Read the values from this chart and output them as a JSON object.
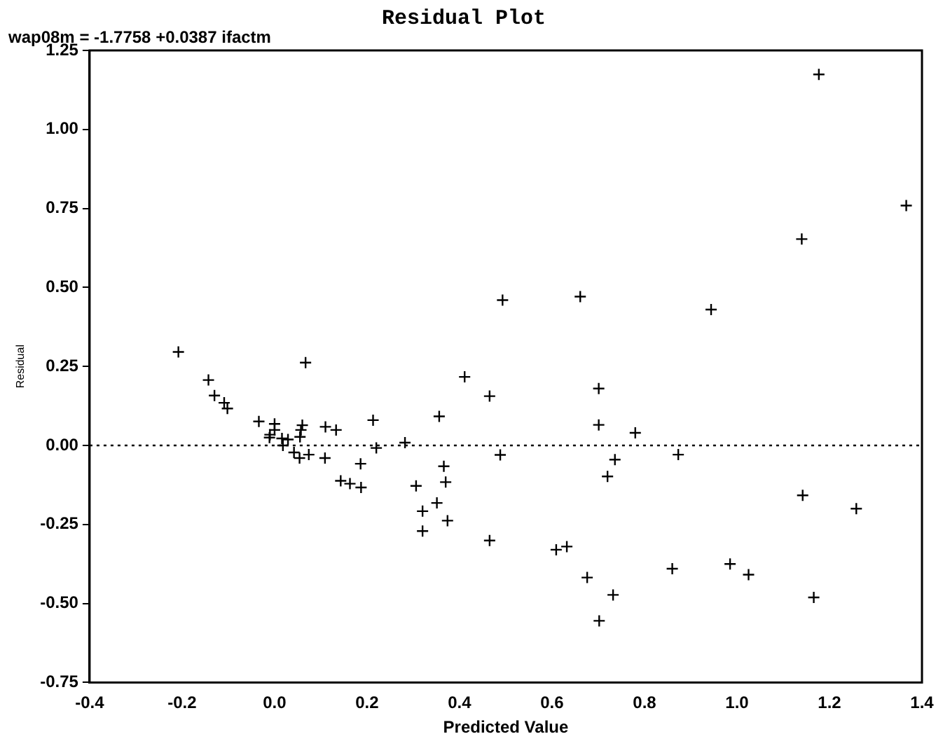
{
  "chart_data": {
    "type": "scatter",
    "title": "Residual Plot",
    "xlabel": "Predicted Value",
    "ylabel": "Residual",
    "annotations": [
      "wap08m = -1.7758 +0.0387 ifactm"
    ],
    "marker": "cross",
    "color": "#000000",
    "grid": false,
    "legend": false,
    "x": [
      -0.208,
      -0.143,
      -0.13,
      -0.109,
      -0.102,
      -0.034,
      0.0,
      0.0,
      -0.01,
      -0.011,
      0.016,
      0.029,
      0.018,
      0.042,
      0.054,
      0.074,
      0.06,
      0.057,
      0.055,
      0.067,
      0.11,
      0.133,
      0.109,
      0.143,
      0.163,
      0.186,
      0.187,
      0.213,
      0.22,
      0.282,
      0.306,
      0.32,
      0.32,
      0.351,
      0.356,
      0.366,
      0.37,
      0.374,
      0.411,
      0.465,
      0.465,
      0.488,
      0.493,
      1.177,
      1.366,
      1.14,
      0.944,
      0.661,
      0.701,
      0.701,
      0.78,
      0.736,
      0.72,
      0.873,
      1.142,
      1.258,
      0.609,
      0.632,
      0.676,
      0.732,
      0.702,
      0.86,
      0.985,
      1.025,
      1.166
    ],
    "values": [
      0.296,
      0.207,
      0.158,
      0.135,
      0.117,
      0.076,
      0.068,
      0.049,
      0.034,
      0.025,
      0.022,
      0.019,
      0.0,
      -0.022,
      -0.04,
      -0.029,
      0.064,
      0.049,
      0.027,
      0.262,
      0.059,
      0.049,
      -0.04,
      -0.112,
      -0.121,
      -0.058,
      -0.133,
      0.08,
      -0.008,
      0.009,
      -0.128,
      -0.208,
      -0.271,
      -0.182,
      0.092,
      -0.066,
      -0.116,
      -0.238,
      0.217,
      0.156,
      -0.301,
      -0.03,
      0.46,
      1.174,
      0.759,
      0.653,
      0.43,
      0.471,
      0.18,
      0.065,
      0.04,
      -0.045,
      -0.098,
      -0.029,
      -0.158,
      -0.2,
      -0.33,
      -0.32,
      -0.418,
      -0.473,
      -0.555,
      -0.39,
      -0.375,
      -0.409,
      -0.481
    ],
    "xlim": [
      -0.4,
      1.4
    ],
    "xticks": [
      {
        "value": -0.4,
        "label": "-0.4"
      },
      {
        "value": -0.2,
        "label": "-0.2"
      },
      {
        "value": 0,
        "label": "0.0"
      },
      {
        "value": 0.2,
        "label": "0.2"
      },
      {
        "value": 0.4,
        "label": "0.4"
      },
      {
        "value": 0.6,
        "label": "0.6"
      },
      {
        "value": 0.8,
        "label": "0.8"
      },
      {
        "value": 1,
        "label": "1.0"
      },
      {
        "value": 1.2,
        "label": "1.2"
      },
      {
        "value": 1.4,
        "label": "1.4"
      }
    ],
    "ylim": [
      -0.75,
      1.25
    ],
    "yticks": [
      {
        "value": -0.75,
        "label": "-0.75"
      },
      {
        "value": -0.5,
        "label": "-0.50"
      },
      {
        "value": -0.25,
        "label": "-0.25"
      },
      {
        "value": 0,
        "label": "0.00"
      },
      {
        "value": 0.25,
        "label": "0.25"
      },
      {
        "value": 0.5,
        "label": "0.50"
      },
      {
        "value": 0.75,
        "label": "0.75"
      },
      {
        "value": 1,
        "label": "1.00"
      },
      {
        "value": 1.25,
        "label": "1.25"
      }
    ],
    "ref_lines": [
      {
        "axis": "y",
        "value": 0,
        "line_style": "dotted",
        "color": "#000000"
      }
    ]
  }
}
